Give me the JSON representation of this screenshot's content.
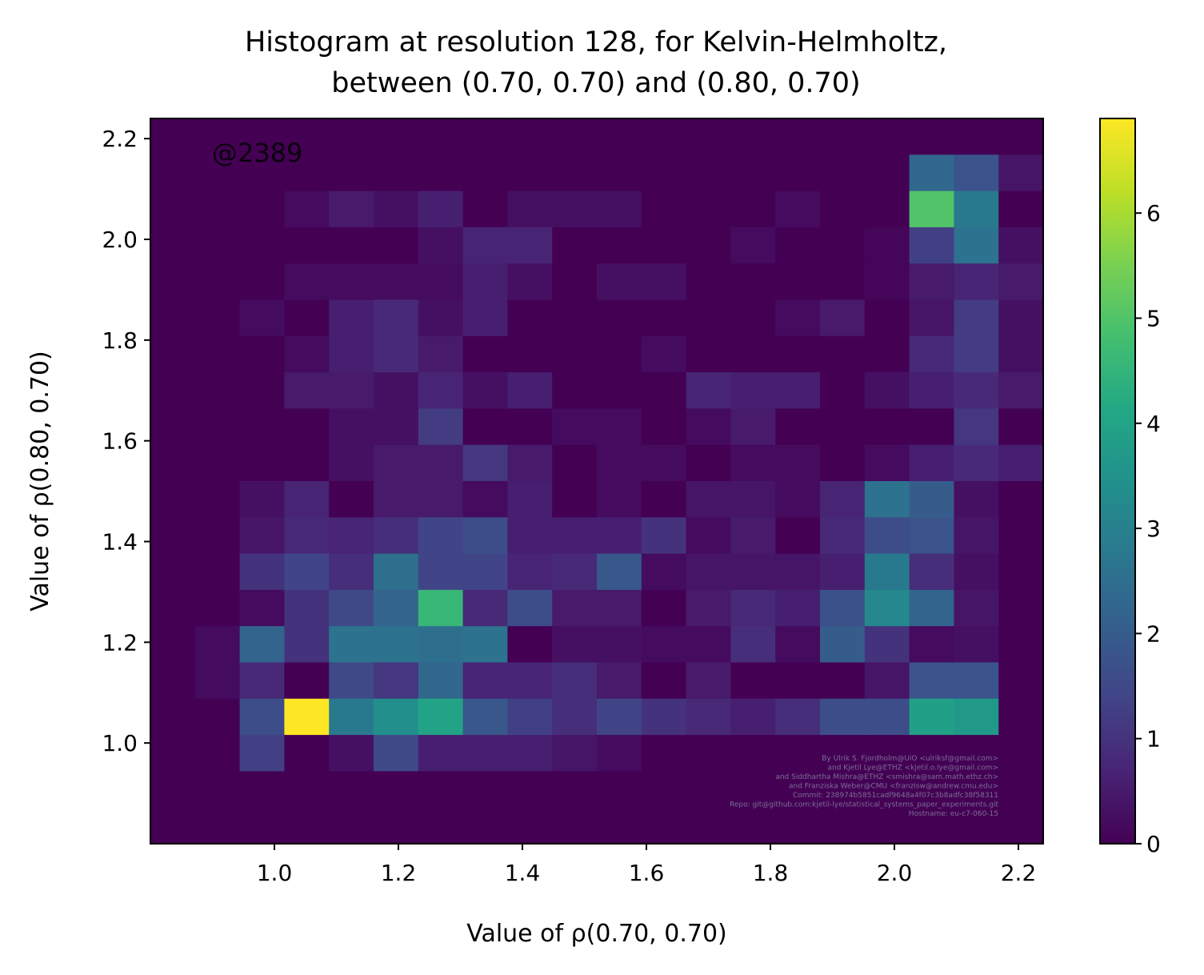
{
  "chart_data": {
    "type": "heatmap",
    "title": "Histogram at resolution 128, for Kelvin-Helmholtz,",
    "subtitle": "between (0.70, 0.70) and (0.80, 0.70)",
    "xlabel": "Value of ρ(0.70, 0.70)",
    "ylabel": "Value of ρ(0.80, 0.70)",
    "annotation": "@2389",
    "credits": [
      "By Ulrik S. Fjordholm@UiO <ulriksf@gmail.com>",
      "and Kjetil Lye@ETHZ <kjetil.o.lye@gmail.com>",
      "and Siddhartha Mishra@ETHZ <smishra@sam.math.ethz.ch>",
      "and Franziska Weber@CMU <franzisw@andrew.cmu.edu>",
      "Commit: 238974b5851cadf9648a4f07c3b8adfc38f58311",
      "Repo: git@github.com:kjetil-lye/statistical_systems_paper_experiments.git",
      "Hostname: eu-c7-060-15"
    ],
    "xlim": [
      0.8,
      2.24
    ],
    "ylim": [
      0.8,
      2.24
    ],
    "x_ticks": [
      "1.0",
      "1.2",
      "1.4",
      "1.6",
      "1.8",
      "2.0",
      "2.2"
    ],
    "y_ticks": [
      "1.0",
      "1.2",
      "1.4",
      "1.6",
      "1.8",
      "2.0",
      "2.2"
    ],
    "colorbar": {
      "min": 0,
      "max": 6.9,
      "colormap": "viridis",
      "ticks": [
        "0",
        "1",
        "2",
        "3",
        "4",
        "5",
        "6"
      ]
    },
    "bins": 20,
    "rows_top_to_bottom": [
      [
        0,
        0,
        0,
        0,
        0,
        0,
        0,
        0,
        0,
        0,
        0,
        0,
        0,
        0,
        0,
        0,
        0,
        0,
        0,
        0
      ],
      [
        0,
        0,
        0,
        0,
        0,
        0,
        0,
        0,
        0,
        0,
        0,
        0,
        0,
        0,
        0,
        0,
        0,
        2.3,
        1.8,
        0.4
      ],
      [
        0,
        0,
        0,
        0.2,
        0.5,
        0.3,
        0.6,
        0,
        0.3,
        0.3,
        0.3,
        0,
        0,
        0,
        0.2,
        0,
        0,
        5.0,
        2.8,
        0
      ],
      [
        0,
        0,
        0,
        0,
        0,
        0,
        0.3,
        0.7,
        0.7,
        0,
        0,
        0,
        0,
        0.2,
        0,
        0,
        0.1,
        1.3,
        2.6,
        0.3
      ],
      [
        0,
        0,
        0,
        0.2,
        0.2,
        0.2,
        0.2,
        0.6,
        0.3,
        0,
        0.3,
        0.3,
        0,
        0,
        0,
        0,
        0.1,
        0.5,
        0.7,
        0.5
      ],
      [
        0,
        0,
        0.2,
        0,
        0.6,
        0.8,
        0.3,
        0.6,
        0,
        0,
        0,
        0,
        0,
        0,
        0.2,
        0.5,
        0,
        0.4,
        1.2,
        0.3
      ],
      [
        0,
        0,
        0,
        0.2,
        0.6,
        0.8,
        0.5,
        0,
        0,
        0,
        0,
        0.2,
        0,
        0,
        0,
        0,
        0,
        0.8,
        1.2,
        0.3
      ],
      [
        0,
        0,
        0,
        0.5,
        0.5,
        0.3,
        0.7,
        0.3,
        0.6,
        0,
        0,
        0,
        0.7,
        0.6,
        0.6,
        0,
        0.3,
        0.6,
        0.8,
        0.5
      ],
      [
        0,
        0,
        0,
        0,
        0.3,
        0.3,
        1.2,
        0,
        0,
        0.2,
        0.2,
        0,
        0.2,
        0.5,
        0,
        0,
        0,
        0,
        1.1,
        0
      ],
      [
        0,
        0,
        0,
        0,
        0.3,
        0.5,
        0.5,
        1.1,
        0.5,
        0,
        0.2,
        0.2,
        0,
        0.2,
        0.2,
        0,
        0.2,
        0.6,
        0.8,
        0.6
      ],
      [
        0,
        0,
        0.3,
        0.7,
        0,
        0.5,
        0.5,
        0.2,
        0.6,
        0,
        0.2,
        0,
        0.4,
        0.4,
        0.2,
        0.7,
        2.6,
        2.0,
        0.3,
        0
      ],
      [
        0,
        0,
        0.4,
        0.8,
        0.7,
        0.9,
        1.4,
        1.6,
        0.6,
        0.6,
        0.6,
        1.0,
        0.2,
        0.5,
        0,
        0.8,
        1.6,
        1.8,
        0.4,
        0
      ],
      [
        0,
        0,
        1.0,
        1.4,
        0.9,
        2.5,
        1.4,
        1.4,
        0.7,
        0.8,
        1.9,
        0.2,
        0.4,
        0.4,
        0.4,
        0.6,
        2.8,
        0.9,
        0.3,
        0
      ],
      [
        0,
        0,
        0.2,
        1.0,
        1.5,
        2.2,
        4.6,
        0.8,
        1.6,
        0.5,
        0.5,
        0,
        0.5,
        0.8,
        0.6,
        1.7,
        3.2,
        2.2,
        0.4,
        0
      ],
      [
        0,
        0.2,
        2.2,
        1.0,
        2.6,
        2.6,
        2.5,
        2.6,
        0,
        0.3,
        0.3,
        0.2,
        0.2,
        0.9,
        0.2,
        2.0,
        1.0,
        0.2,
        0.3,
        0
      ],
      [
        0,
        0.2,
        0.8,
        0,
        1.5,
        1.1,
        2.3,
        0.7,
        0.7,
        0.9,
        0.5,
        0,
        0.5,
        0,
        0,
        0,
        0.4,
        1.8,
        1.8,
        0
      ],
      [
        0,
        0,
        1.6,
        6.9,
        2.8,
        3.4,
        4.0,
        1.9,
        1.3,
        0.9,
        1.4,
        1.0,
        0.8,
        0.6,
        0.9,
        1.6,
        1.6,
        3.9,
        3.7,
        0
      ],
      [
        0,
        0,
        1.3,
        0,
        0.3,
        1.5,
        0.6,
        0.6,
        0.6,
        0.4,
        0.2,
        0,
        0,
        0,
        0,
        0,
        0,
        0,
        0,
        0
      ],
      [
        0,
        0,
        0,
        0,
        0,
        0,
        0,
        0,
        0,
        0,
        0,
        0,
        0,
        0,
        0,
        0,
        0,
        0,
        0,
        0
      ],
      [
        0,
        0,
        0,
        0,
        0,
        0,
        0,
        0,
        0,
        0,
        0,
        0,
        0,
        0,
        0,
        0,
        0,
        0,
        0,
        0
      ]
    ]
  }
}
